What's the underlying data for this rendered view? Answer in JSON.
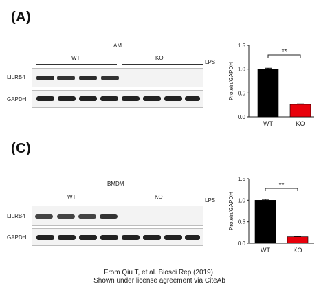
{
  "panelA": {
    "label": "(A)",
    "blot": {
      "cell_type": "AM",
      "group_wt": "WT",
      "group_ko": "KO",
      "treatment": "LPS",
      "row1": "LILRB4",
      "row2": "GAPDH"
    }
  },
  "panelC": {
    "label": "(C)",
    "blot": {
      "cell_type": "BMDM",
      "group_wt": "WT",
      "group_ko": "KO",
      "treatment": "LPS",
      "row1": "LILRB4",
      "row2": "GAPDH"
    }
  },
  "chart_data": [
    {
      "type": "bar",
      "categories": [
        "WT",
        "KO"
      ],
      "values": [
        1.0,
        0.26
      ],
      "errors": [
        0.02,
        0.01
      ],
      "colors": [
        "#000000",
        "#e8000b"
      ],
      "ylabel": "Protein/GAPDH",
      "ylim": [
        0,
        1.5
      ],
      "yticks": [
        "0.0",
        "0.5",
        "1.0",
        "1.5"
      ],
      "significance": "**"
    },
    {
      "type": "bar",
      "categories": [
        "WT",
        "KO"
      ],
      "values": [
        1.0,
        0.15
      ],
      "errors": [
        0.02,
        0.01
      ],
      "colors": [
        "#000000",
        "#e8000b"
      ],
      "ylabel": "Protein/GAPDH",
      "ylim": [
        0,
        1.5
      ],
      "yticks": [
        "0.0",
        "0.5",
        "1.0",
        "1.5"
      ],
      "significance": "**"
    }
  ],
  "caption": {
    "line1": "From Qiu T, et al. Biosci Rep (2019).",
    "line2": "Shown under license agreement via CiteAb"
  }
}
